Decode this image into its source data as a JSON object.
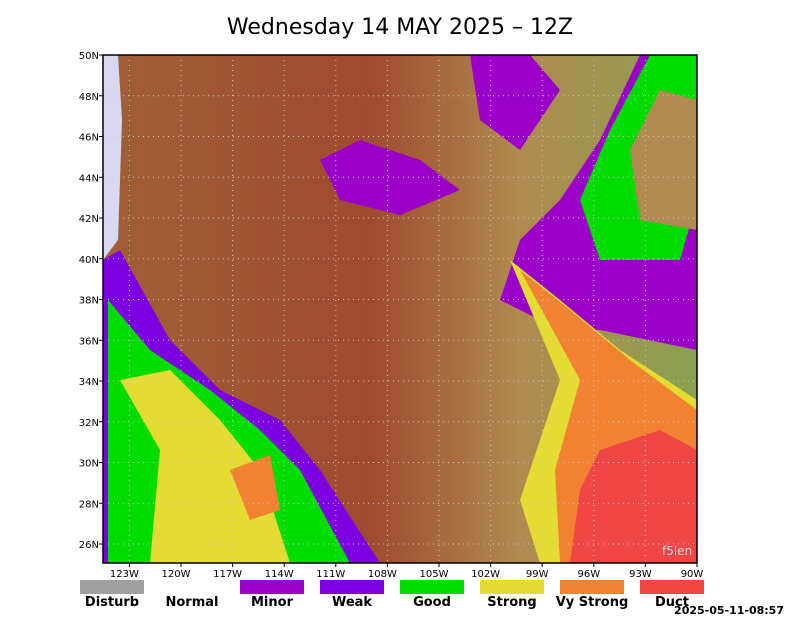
{
  "title": "Wednesday 14 MAY 2025 – 12Z",
  "lat_labels": [
    "50N",
    "48N",
    "46N",
    "44N",
    "42N",
    "40N",
    "38N",
    "36N",
    "34N",
    "32N",
    "30N",
    "28N",
    "26N"
  ],
  "lon_labels": [
    "123W",
    "120W",
    "117W",
    "114W",
    "111W",
    "108W",
    "105W",
    "102W",
    "99W",
    "96W",
    "93W",
    "90W"
  ],
  "legend": [
    {
      "label": "Disturb",
      "color": "#a0a0a0"
    },
    {
      "label": "Normal",
      "color": "#ffffff"
    },
    {
      "label": "Minor",
      "color": "#9a00c8"
    },
    {
      "label": "Weak",
      "color": "#7d00e0"
    },
    {
      "label": "Good",
      "color": "#00dc00"
    },
    {
      "label": "Strong",
      "color": "#e4dc32"
    },
    {
      "label": "Vy Strong",
      "color": "#f08232"
    },
    {
      "label": "Duct",
      "color": "#f04646"
    }
  ],
  "watermark": "f5len",
  "timestamp": "2025-05-11-08:57"
}
